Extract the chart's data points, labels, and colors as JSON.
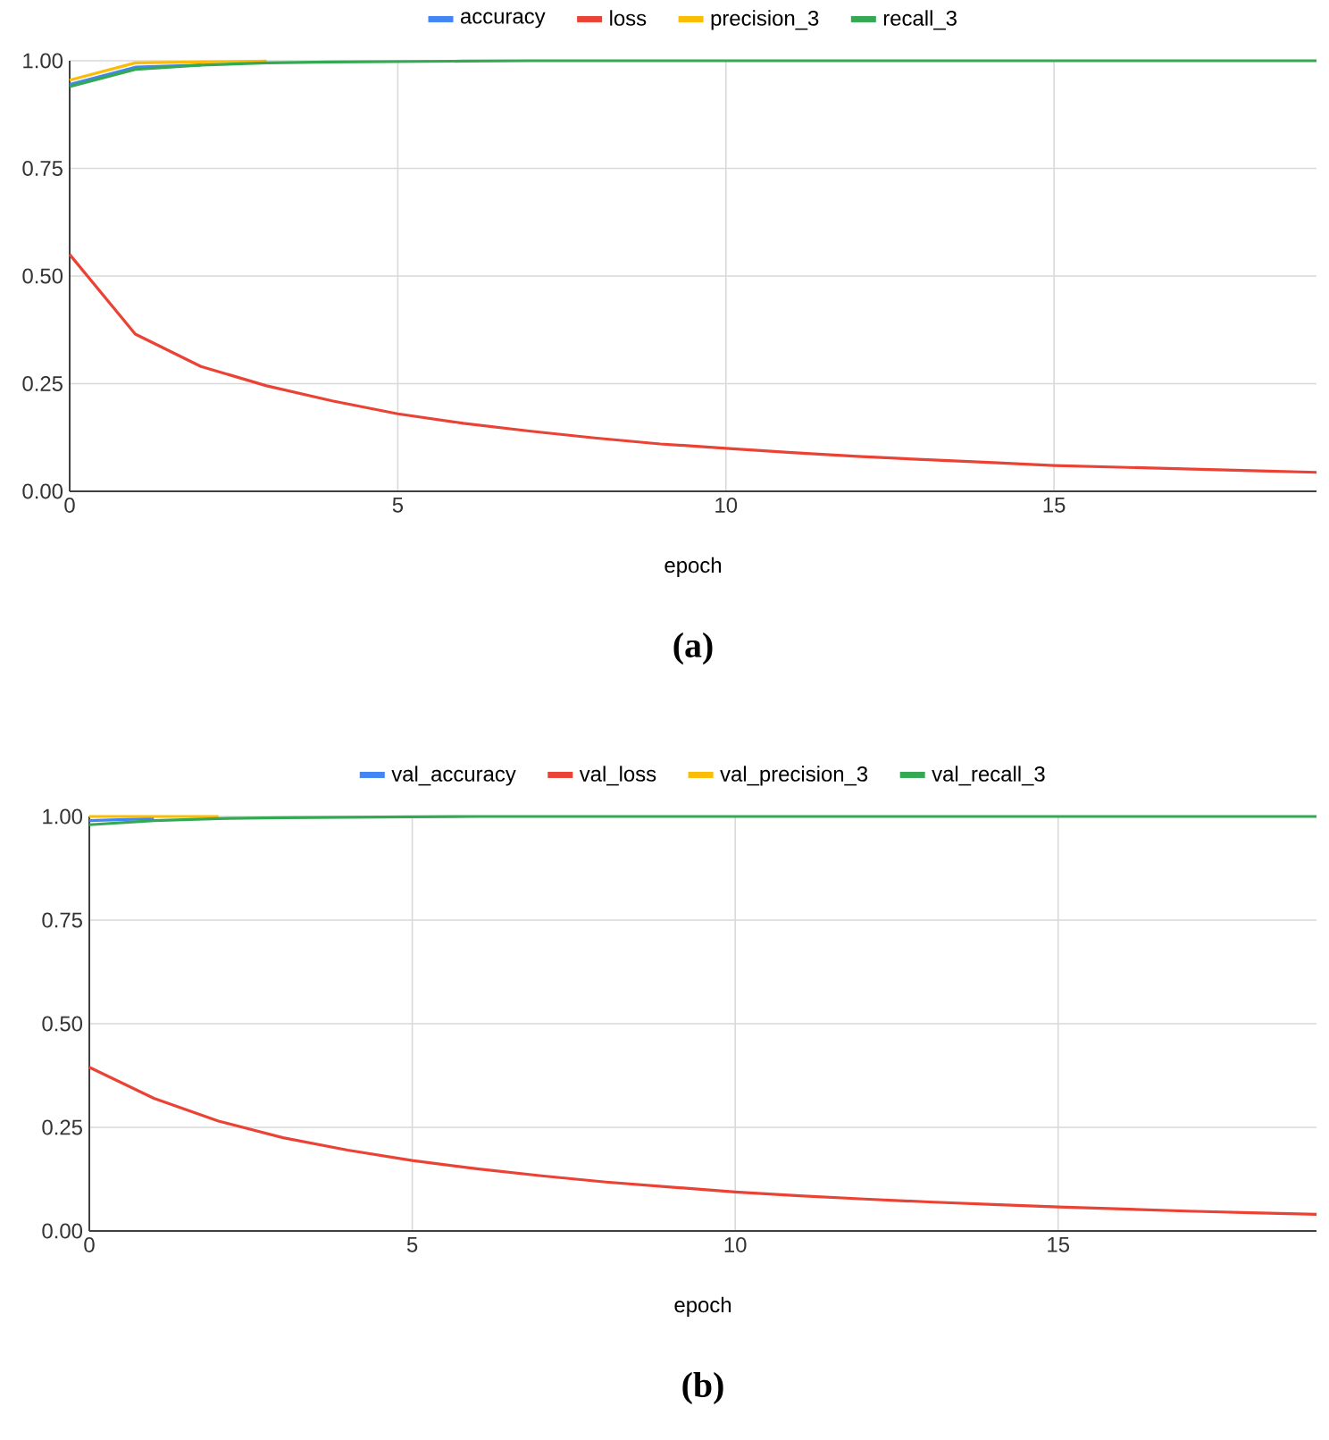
{
  "chart_data": [
    {
      "type": "line",
      "x": [
        0,
        1,
        2,
        3,
        4,
        5,
        6,
        7,
        8,
        9,
        10,
        11,
        12,
        13,
        14,
        15,
        16,
        17,
        18,
        19
      ],
      "xlim": [
        0,
        19
      ],
      "xticks": [
        0,
        5,
        10,
        15
      ],
      "ylim": [
        0,
        1
      ],
      "yticks": [
        {
          "value": 0,
          "label": "0.00"
        },
        {
          "value": 0.25,
          "label": "0.25"
        },
        {
          "value": 0.5,
          "label": "0.50"
        },
        {
          "value": 0.75,
          "label": "0.75"
        },
        {
          "value": 1,
          "label": "1.00"
        }
      ],
      "xlabel": "epoch",
      "grid": true,
      "legend": "top",
      "annotations": [
        "(a)"
      ],
      "series": [
        {
          "name": "accuracy",
          "color": "#4285f4",
          "values": [
            0.945,
            0.985,
            0.99,
            null,
            null,
            null,
            null,
            null,
            null,
            null,
            null,
            null,
            null,
            null,
            null,
            null,
            null,
            null,
            null,
            null
          ]
        },
        {
          "name": "loss",
          "color": "#ea4335",
          "values": [
            0.55,
            0.365,
            0.29,
            0.245,
            0.21,
            0.18,
            0.158,
            0.14,
            0.124,
            0.11,
            0.1,
            0.09,
            0.081,
            0.074,
            0.067,
            0.06,
            0.056,
            0.052,
            0.048,
            0.044
          ]
        },
        {
          "name": "precision_3",
          "color": "#fbbc04",
          "values": [
            0.955,
            0.995,
            0.997,
            0.999,
            null,
            null,
            null,
            null,
            null,
            null,
            null,
            null,
            null,
            null,
            null,
            null,
            null,
            null,
            null,
            null
          ]
        },
        {
          "name": "recall_3",
          "color": "#34a853",
          "values": [
            0.94,
            0.98,
            0.99,
            0.995,
            0.997,
            0.998,
            0.999,
            1,
            1,
            1,
            1,
            1,
            1,
            1,
            1,
            1,
            1,
            1,
            1,
            1
          ]
        }
      ]
    },
    {
      "type": "line",
      "x": [
        0,
        1,
        2,
        3,
        4,
        5,
        6,
        7,
        8,
        9,
        10,
        11,
        12,
        13,
        14,
        15,
        16,
        17,
        18,
        19
      ],
      "xlim": [
        0,
        19
      ],
      "xticks": [
        0,
        5,
        10,
        15
      ],
      "ylim": [
        0,
        1
      ],
      "yticks": [
        {
          "value": 0,
          "label": "0.00"
        },
        {
          "value": 0.25,
          "label": "0.25"
        },
        {
          "value": 0.5,
          "label": "0.50"
        },
        {
          "value": 0.75,
          "label": "0.75"
        },
        {
          "value": 1,
          "label": "1.00"
        }
      ],
      "xlabel": "epoch",
      "grid": true,
      "legend": "top",
      "annotations": [
        "(b)"
      ],
      "series": [
        {
          "name": "val_accuracy",
          "color": "#4285f4",
          "values": [
            0.99,
            0.995,
            null,
            null,
            null,
            null,
            null,
            null,
            null,
            null,
            null,
            null,
            null,
            null,
            null,
            null,
            null,
            null,
            null,
            null
          ]
        },
        {
          "name": "val_loss",
          "color": "#ea4335",
          "values": [
            0.395,
            0.32,
            0.265,
            0.225,
            0.195,
            0.17,
            0.15,
            0.133,
            0.118,
            0.106,
            0.094,
            0.085,
            0.077,
            0.07,
            0.064,
            0.058,
            0.053,
            0.048,
            0.044,
            0.04
          ]
        },
        {
          "name": "val_precision_3",
          "color": "#fbbc04",
          "values": [
            1,
            1,
            1,
            null,
            null,
            null,
            null,
            null,
            null,
            null,
            null,
            null,
            null,
            null,
            null,
            null,
            null,
            null,
            null,
            null
          ]
        },
        {
          "name": "val_recall_3",
          "color": "#34a853",
          "values": [
            0.98,
            0.99,
            0.995,
            0.997,
            0.998,
            0.999,
            1,
            1,
            1,
            1,
            1,
            1,
            1,
            1,
            1,
            1,
            1,
            1,
            1,
            1
          ]
        }
      ]
    }
  ]
}
